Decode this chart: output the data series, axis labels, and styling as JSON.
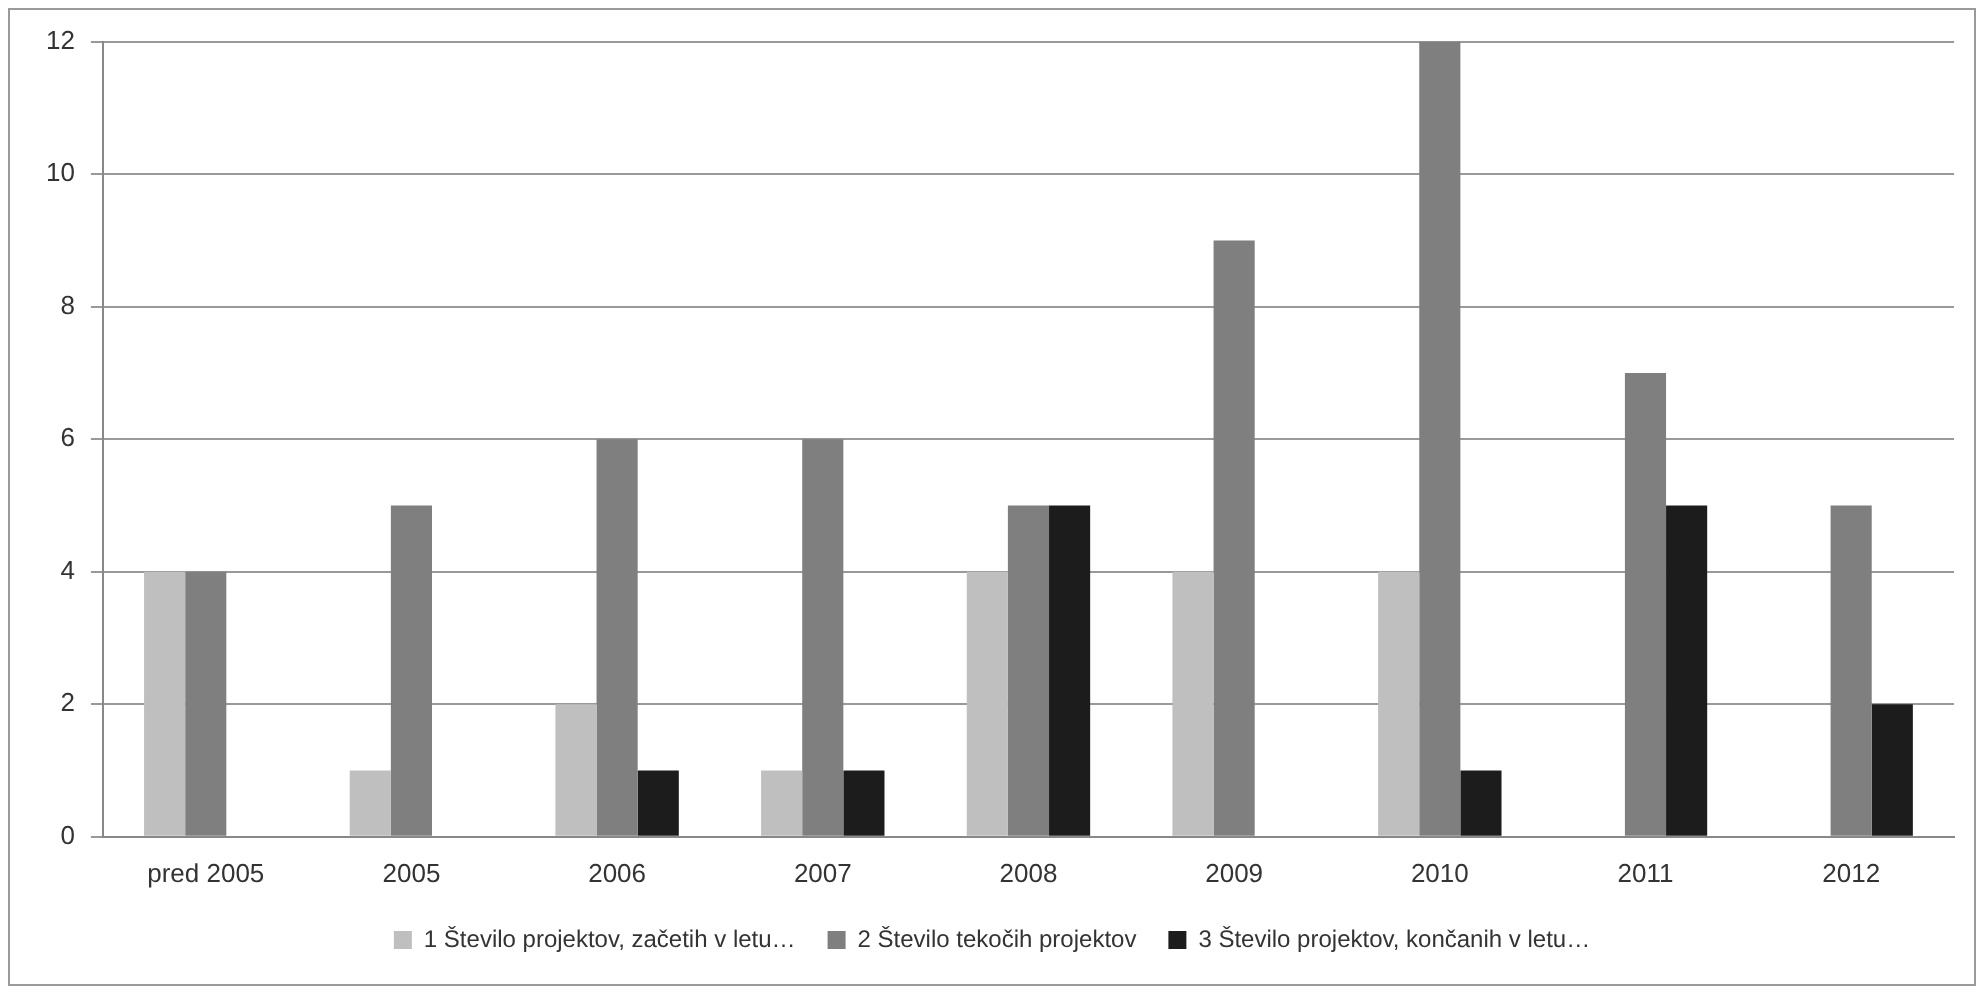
{
  "chart_data": {
    "type": "bar",
    "categories": [
      "pred 2005",
      "2005",
      "2006",
      "2007",
      "2008",
      "2009",
      "2010",
      "2011",
      "2012"
    ],
    "series": [
      {
        "name": "1 Število projektov, začetih v letu…",
        "color": "#bfbfbf",
        "values": [
          4,
          1,
          2,
          1,
          4,
          4,
          4,
          0,
          0
        ]
      },
      {
        "name": "2 Število tekočih projektov",
        "color": "#7f7f7f",
        "values": [
          4,
          5,
          6,
          6,
          5,
          9,
          12,
          7,
          5
        ]
      },
      {
        "name": "3 Število projektov, končanih v letu…",
        "color": "#1c1c1c",
        "values": [
          0,
          0,
          1,
          1,
          5,
          0,
          1,
          5,
          2
        ]
      }
    ],
    "ylim": [
      0,
      12
    ],
    "yticks": [
      0,
      2,
      4,
      6,
      8,
      10,
      12
    ],
    "grid": "y",
    "legend": "bottom"
  }
}
